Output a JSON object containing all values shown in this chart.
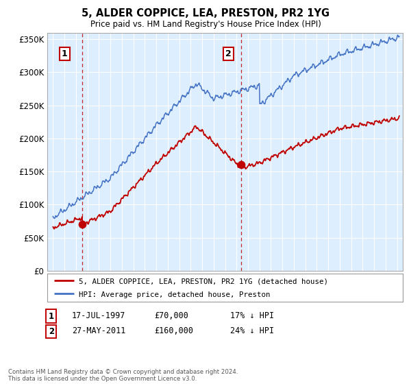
{
  "title": "5, ALDER COPPICE, LEA, PRESTON, PR2 1YG",
  "subtitle": "Price paid vs. HM Land Registry's House Price Index (HPI)",
  "purchase1": {
    "date": 1997.54,
    "price": 70000,
    "label": "1",
    "pct": "17% ↓ HPI",
    "date_str": "17-JUL-1997",
    "price_str": "£70,000"
  },
  "purchase2": {
    "date": 2011.4,
    "price": 160000,
    "label": "2",
    "pct": "24% ↓ HPI",
    "date_str": "27-MAY-2011",
    "price_str": "£160,000"
  },
  "ylabel_ticks": [
    "£0",
    "£50K",
    "£100K",
    "£150K",
    "£200K",
    "£250K",
    "£300K",
    "£350K"
  ],
  "ytick_vals": [
    0,
    50000,
    100000,
    150000,
    200000,
    250000,
    300000,
    350000
  ],
  "ylim": [
    0,
    360000
  ],
  "xlim_start": 1994.5,
  "xlim_end": 2025.5,
  "background_color": "#ddeeff",
  "hpi_color": "#4472c4",
  "price_color": "#c00000",
  "grid_color": "#ffffff",
  "legend_label_price": "5, ALDER COPPICE, LEA, PRESTON, PR2 1YG (detached house)",
  "legend_label_hpi": "HPI: Average price, detached house, Preston",
  "footnote": "Contains HM Land Registry data © Crown copyright and database right 2024.\nThis data is licensed under the Open Government Licence v3.0."
}
